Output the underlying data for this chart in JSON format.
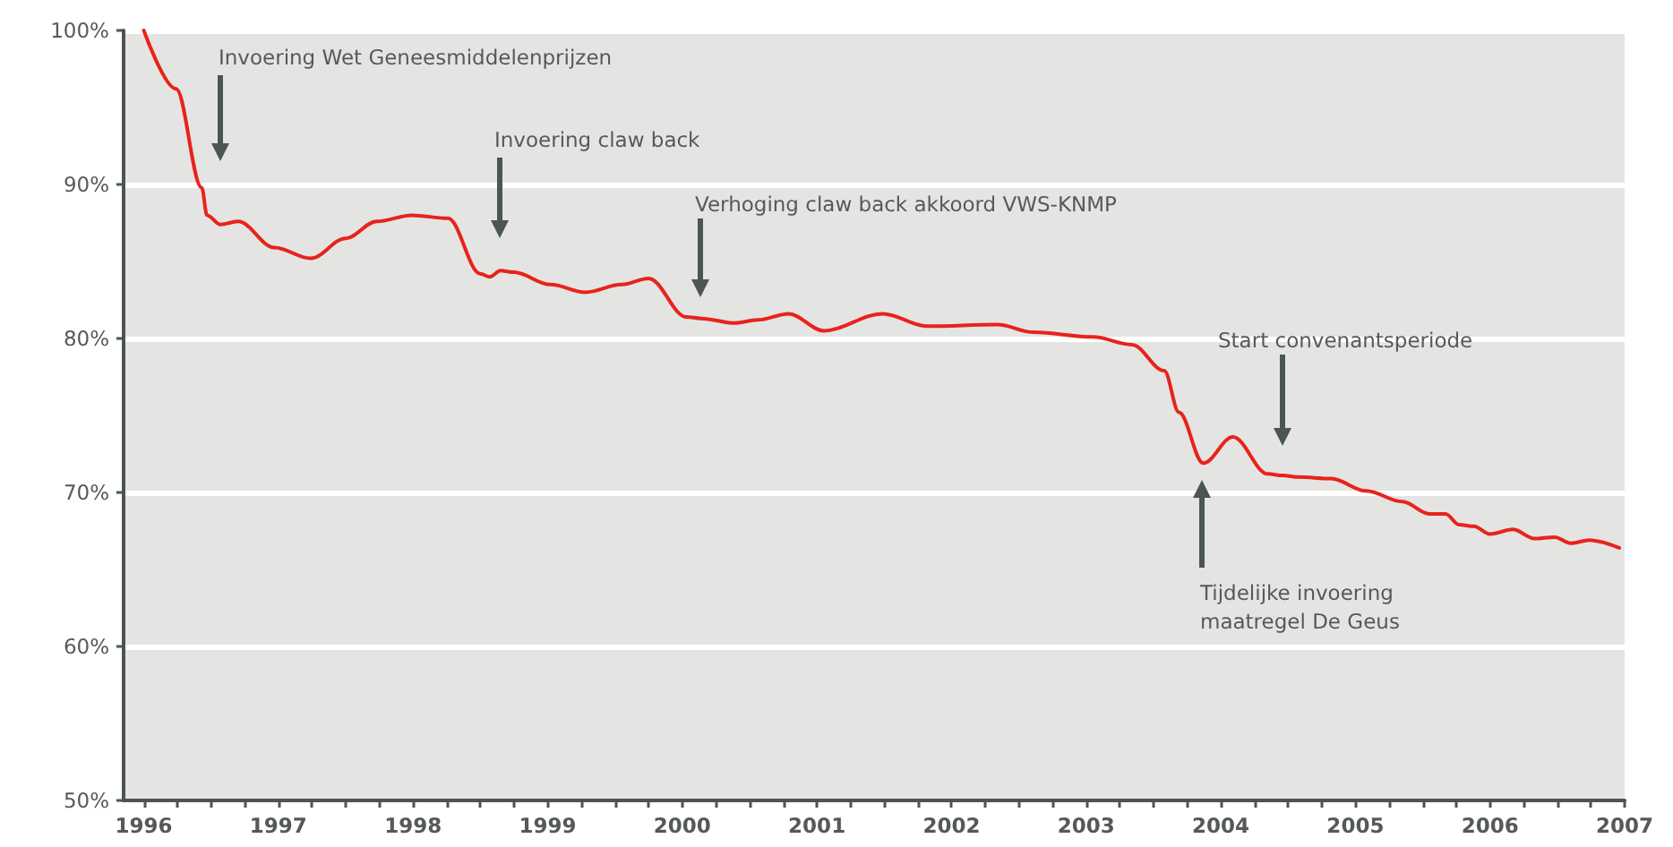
{
  "chart_data": {
    "type": "line",
    "x": [
      1996.0,
      1996.24,
      1996.43,
      1996.47,
      1996.57,
      1996.7,
      1996.97,
      1997.24,
      1997.5,
      1997.73,
      1997.99,
      1998.26,
      1998.5,
      1998.57,
      1998.65,
      1998.75,
      1999.02,
      1999.28,
      1999.55,
      1999.75,
      2000.03,
      2000.14,
      2000.39,
      2000.56,
      2000.79,
      2001.05,
      2001.49,
      2001.82,
      2002.34,
      2002.61,
      2003.05,
      2003.34,
      2003.58,
      2003.69,
      2003.87,
      2004.09,
      2004.35,
      2004.46,
      2004.58,
      2004.82,
      2005.08,
      2005.35,
      2005.55,
      2005.67,
      2005.77,
      2005.88,
      2006.0,
      2006.17,
      2006.33,
      2006.48,
      2006.6,
      2006.74,
      2006.96
    ],
    "series": [
      {
        "color": "#e8231b",
        "values": [
          100,
          96.2,
          89.8,
          88.0,
          87.4,
          87.6,
          85.9,
          85.2,
          86.5,
          87.6,
          88.0,
          87.8,
          84.2,
          84.0,
          84.4,
          84.3,
          83.5,
          83.0,
          83.5,
          83.9,
          81.4,
          81.3,
          81.0,
          81.2,
          81.6,
          80.5,
          81.6,
          80.8,
          80.9,
          80.4,
          80.1,
          79.6,
          77.9,
          75.2,
          71.9,
          73.6,
          71.2,
          71.1,
          71.0,
          70.9,
          70.1,
          69.4,
          68.6,
          68.6,
          67.9,
          67.8,
          67.3,
          67.6,
          67.0,
          67.1,
          66.7,
          66.9,
          66.4
        ]
      }
    ],
    "xlim": [
      1995.85,
      2007
    ],
    "xticks": [
      1996,
      {
        "value": 1996.25,
        "label": null
      },
      {
        "value": 1996.5,
        "label": null
      },
      {
        "value": 1996.75,
        "label": null
      },
      1997,
      {
        "value": 1997.25,
        "label": null
      },
      {
        "value": 1997.5,
        "label": null
      },
      {
        "value": 1997.75,
        "label": null
      },
      1998,
      {
        "value": 1998.25,
        "label": null
      },
      {
        "value": 1998.5,
        "label": null
      },
      {
        "value": 1998.75,
        "label": null
      },
      1999,
      {
        "value": 1999.25,
        "label": null
      },
      {
        "value": 1999.5,
        "label": null
      },
      {
        "value": 1999.75,
        "label": null
      },
      2000,
      {
        "value": 2000.25,
        "label": null
      },
      {
        "value": 2000.5,
        "label": null
      },
      {
        "value": 2000.75,
        "label": null
      },
      2001,
      {
        "value": 2001.25,
        "label": null
      },
      {
        "value": 2001.5,
        "label": null
      },
      {
        "value": 2001.75,
        "label": null
      },
      2002,
      {
        "value": 2002.25,
        "label": null
      },
      {
        "value": 2002.5,
        "label": null
      },
      {
        "value": 2002.75,
        "label": null
      },
      2003,
      {
        "value": 2003.25,
        "label": null
      },
      {
        "value": 2003.5,
        "label": null
      },
      {
        "value": 2003.75,
        "label": null
      },
      2004,
      {
        "value": 2004.25,
        "label": null
      },
      {
        "value": 2004.5,
        "label": null
      },
      {
        "value": 2004.75,
        "label": null
      },
      2005,
      {
        "value": 2005.25,
        "label": null
      },
      {
        "value": 2005.5,
        "label": null
      },
      {
        "value": 2005.75,
        "label": null
      },
      2006,
      {
        "value": 2006.25,
        "label": null
      },
      {
        "value": 2006.5,
        "label": null
      },
      {
        "value": 2006.75,
        "label": null
      },
      2007
    ],
    "ylim": [
      50,
      100
    ],
    "yticks": [
      {
        "value": 50,
        "label": "50%"
      },
      {
        "value": 60,
        "label": "60%"
      },
      {
        "value": 70,
        "label": "70%"
      },
      {
        "value": 80,
        "label": "80%"
      },
      {
        "value": 90,
        "label": "90%"
      },
      {
        "value": 100,
        "label": "100%"
      }
    ],
    "grid": "y",
    "marker": "none",
    "annotations": [
      "Invoering Wet Geneesmiddelenprijzen",
      "Invoering claw back",
      "Verhoging claw back akkoord VWS-KNMP",
      "Start convenantsperiode",
      "Tijdelijke invoering\nmaatregel De Geus"
    ]
  }
}
